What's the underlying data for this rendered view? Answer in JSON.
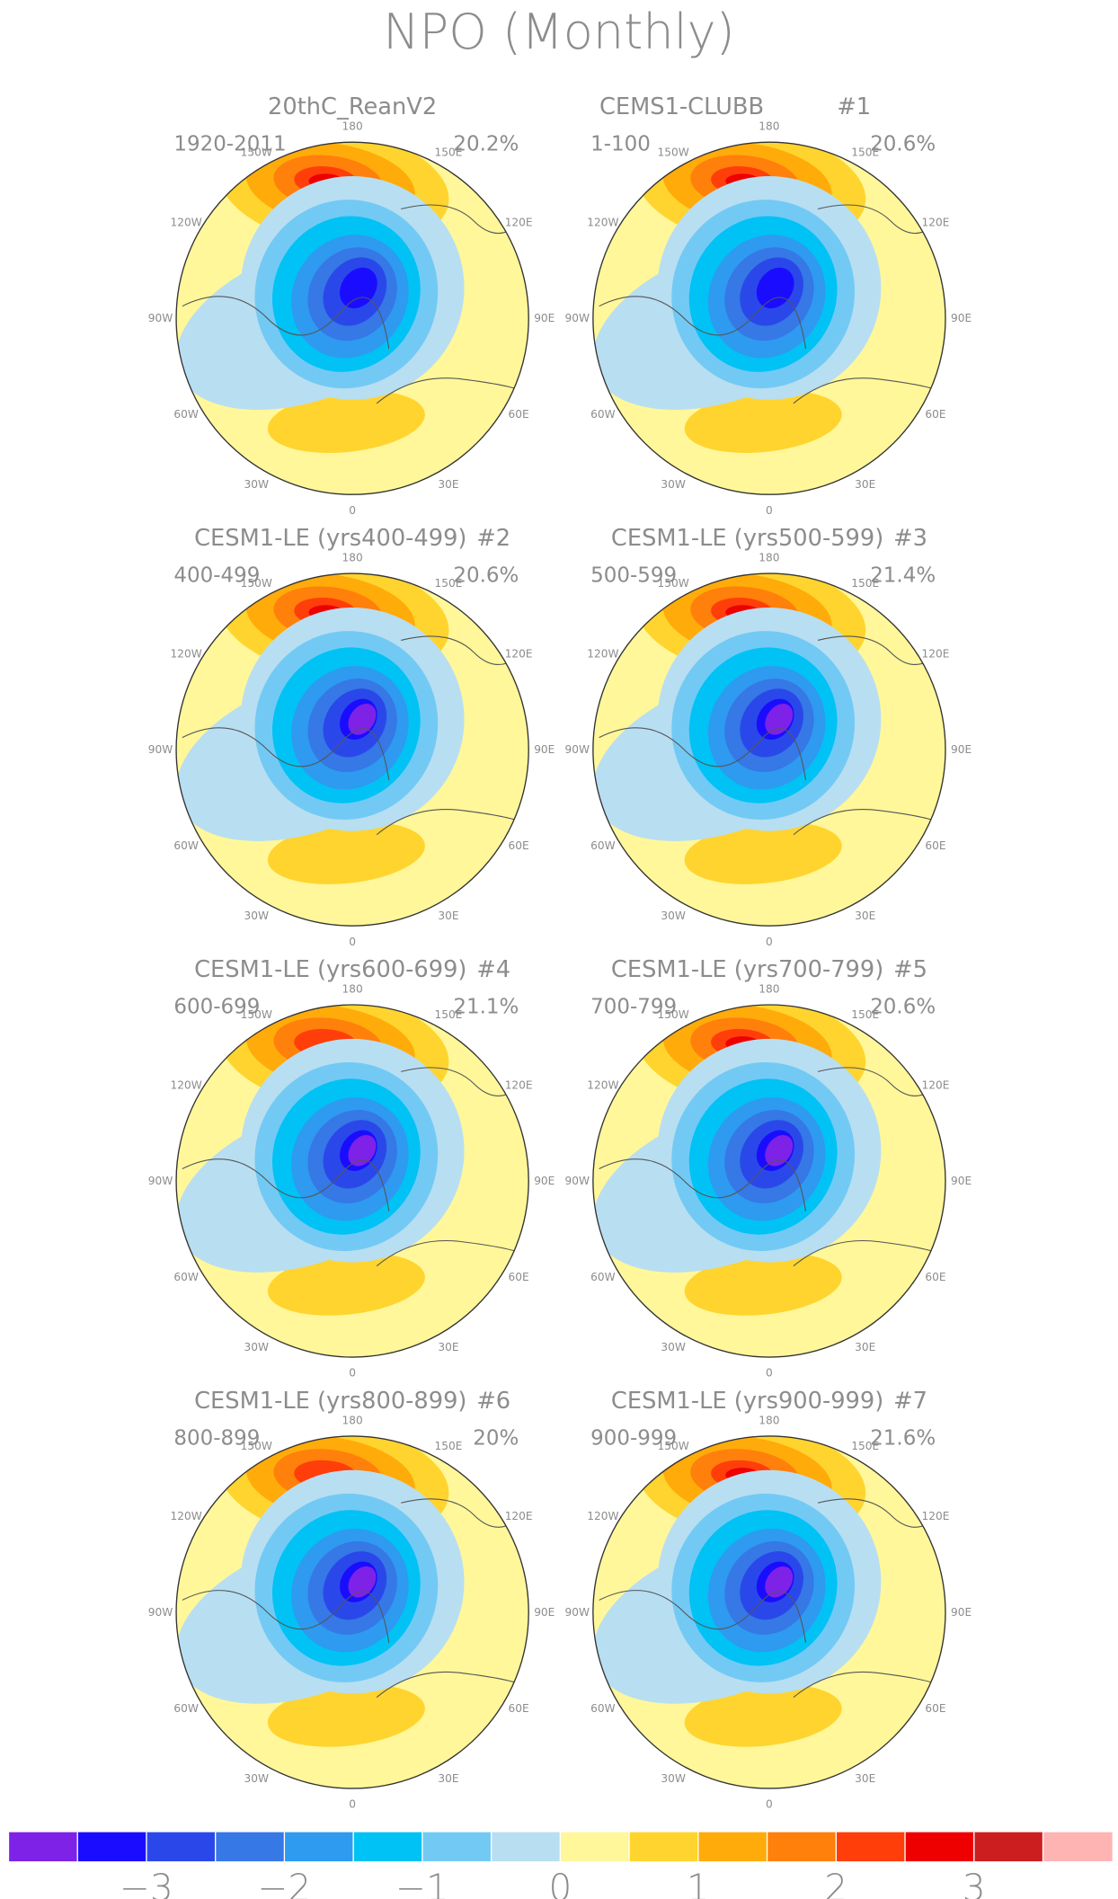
{
  "title": "NPO (Monthly)",
  "lon_labels": [
    "0",
    "30E",
    "60E",
    "90E",
    "120E",
    "150E",
    "180",
    "150W",
    "120W",
    "90W",
    "60W",
    "30W"
  ],
  "panels": [
    {
      "title": "20thC_ReanV2",
      "period": "1920-2011",
      "percent": "20.2%"
    },
    {
      "title": "CEMS1-CLUBB",
      "member": "#1",
      "period": "1-100",
      "percent": "20.6%"
    },
    {
      "title": "CESM1-LE (yrs400-499)",
      "member": "#2",
      "period": "400-499",
      "percent": "20.6%"
    },
    {
      "title": "CESM1-LE (yrs500-599)",
      "member": "#3",
      "period": "500-599",
      "percent": "21.4%"
    },
    {
      "title": "CESM1-LE (yrs600-699)",
      "member": "#4",
      "period": "600-699",
      "percent": "21.1%"
    },
    {
      "title": "CESM1-LE (yrs700-799)",
      "member": "#5",
      "period": "700-799",
      "percent": "20.6%"
    },
    {
      "title": "CESM1-LE (yrs800-899)",
      "member": "#6",
      "period": "800-899",
      "percent": "20%"
    },
    {
      "title": "CESM1-LE (yrs900-999)",
      "member": "#7",
      "period": "900-999",
      "percent": "21.6%"
    }
  ],
  "colorbar": {
    "colors": [
      "#7d22e6",
      "#1a0dff",
      "#2a48ea",
      "#3578e6",
      "#2e9af0",
      "#00c2f5",
      "#72caf4",
      "#b8def2",
      "#fff79a",
      "#ffd42e",
      "#ffab0a",
      "#ff800a",
      "#ff3e0a",
      "#ee0000",
      "#cc1e1e",
      "#ffb4b4"
    ],
    "lim": [
      -4,
      4
    ],
    "ticks": [
      {
        "value": -3,
        "label": "−3"
      },
      {
        "value": -2,
        "label": "−2"
      },
      {
        "value": -1,
        "label": "−1"
      },
      0,
      1,
      2,
      3
    ]
  }
}
